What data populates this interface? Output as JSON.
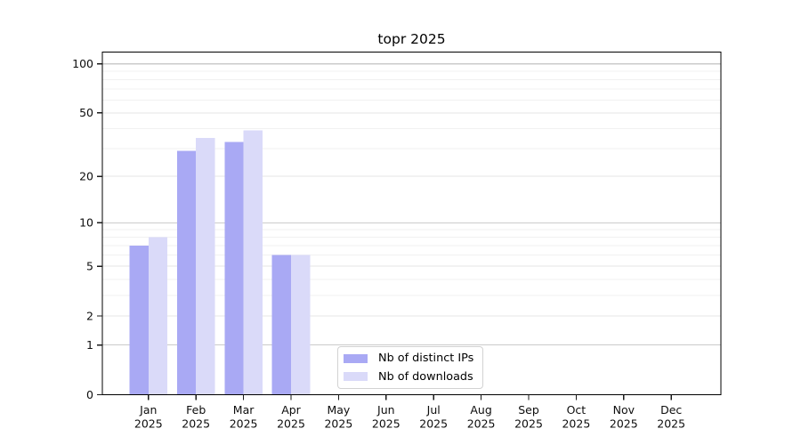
{
  "chart_data": {
    "type": "bar",
    "title": "topr 2025",
    "xlabel": "",
    "ylabel": "",
    "yscale": "log1p",
    "ylim": [
      0,
      118
    ],
    "yticks": [
      0,
      1,
      2,
      5,
      10,
      20,
      50,
      100
    ],
    "grid": true,
    "legend_position": "lower center",
    "year_label": "2025",
    "categories": [
      "Jan",
      "Feb",
      "Mar",
      "Apr",
      "May",
      "Jun",
      "Jul",
      "Aug",
      "Sep",
      "Oct",
      "Nov",
      "Dec"
    ],
    "series": [
      {
        "name": "Nb of distinct IPs",
        "color": "#a9a9f4",
        "values": [
          7,
          29,
          33,
          6,
          0,
          0,
          0,
          0,
          0,
          0,
          0,
          0
        ]
      },
      {
        "name": "Nb of downloads",
        "color": "#dadaf9",
        "values": [
          8,
          35,
          39,
          6,
          0,
          0,
          0,
          0,
          0,
          0,
          0,
          0
        ]
      }
    ]
  }
}
